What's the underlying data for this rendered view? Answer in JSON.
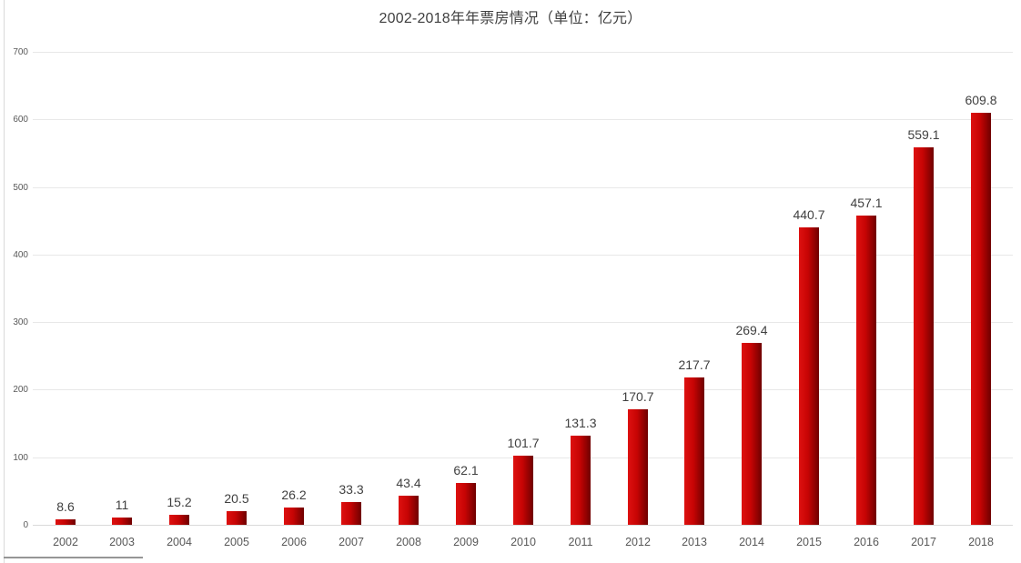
{
  "window": {
    "background": "#ffffff",
    "left_border_color": "#d9d9d9",
    "bottom_border_color": "#969696"
  },
  "chart_data": {
    "type": "bar",
    "title": "2002-2018年年票房情况（单位：亿元）",
    "categories": [
      "2002",
      "2003",
      "2004",
      "2005",
      "2006",
      "2007",
      "2008",
      "2009",
      "2010",
      "2011",
      "2012",
      "2013",
      "2014",
      "2015",
      "2016",
      "2017",
      "2018"
    ],
    "values": [
      8.6,
      11,
      15.2,
      20.5,
      26.2,
      33.3,
      43.4,
      62.1,
      101.7,
      131.3,
      170.7,
      217.7,
      269.4,
      440.7,
      457.1,
      559.1,
      609.8
    ],
    "value_labels": [
      "8.6",
      "11",
      "15.2",
      "20.5",
      "26.2",
      "33.3",
      "43.4",
      "62.1",
      "101.7",
      "131.3",
      "170.7",
      "217.7",
      "269.4",
      "440.7",
      "457.1",
      "559.1",
      "609.8"
    ],
    "xlabel": "",
    "ylabel": "",
    "ylim": [
      0,
      700
    ],
    "yticks": [
      0,
      100,
      200,
      300,
      400,
      500,
      600,
      700
    ],
    "grid": "horizontal",
    "legend": "none",
    "colors": {
      "bar_gradient_left": "#de1110",
      "bar_gradient_mid": "#c70404",
      "bar_gradient_right": "#6f0000",
      "gridline": "#e8e8e8",
      "axis_line": "#d9d9d9",
      "title_text": "#3f3f3f",
      "value_label_text": "#404040",
      "tick_label_text": "#595959"
    }
  }
}
